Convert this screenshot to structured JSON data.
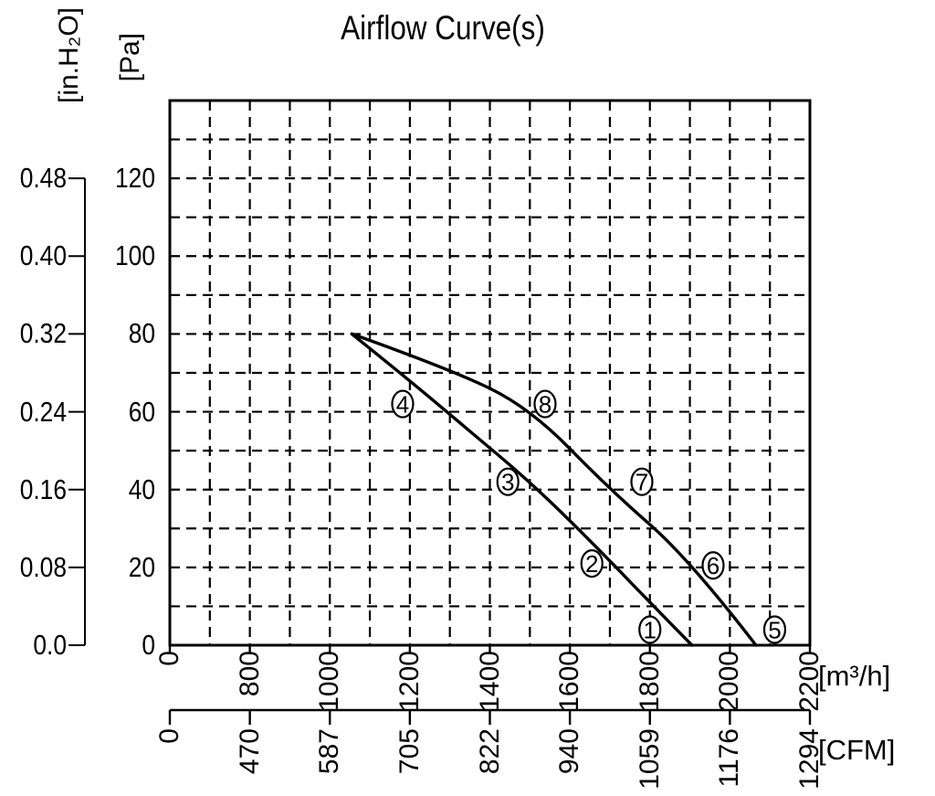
{
  "title": "Airflow Curve(s)",
  "colors": {
    "ink": "#000000",
    "background": "#ffffff"
  },
  "chart_data": {
    "type": "line",
    "title": "Airflow Curve(s)",
    "grid": {
      "style": "dashed",
      "x_step_m3h": 100,
      "y_step_pa": 10
    },
    "x_axes": [
      {
        "name": "airflow-m3h",
        "unit": "[m³/h]",
        "ticks": [
          0,
          800,
          1000,
          1200,
          1400,
          1600,
          1800,
          2000,
          2200
        ]
      },
      {
        "name": "airflow-cfm",
        "unit": "[CFM]",
        "ticks": [
          0,
          470,
          587,
          705,
          822,
          940,
          1059,
          1176,
          1294
        ]
      }
    ],
    "y_axes": [
      {
        "name": "static-pressure-inh2o",
        "unit": "[in.H₂O]",
        "ticks": [
          "0.48",
          "0.40",
          "0.32",
          "0.24",
          "0.16",
          "0.08",
          "0.0"
        ]
      },
      {
        "name": "static-pressure-pa",
        "unit": "[Pa]",
        "ticks": [
          120,
          100,
          80,
          60,
          40,
          20,
          0
        ]
      }
    ],
    "x_range_m3h": [
      0,
      2200
    ],
    "y_range_pa": [
      0,
      140
    ],
    "legend": "none",
    "series": [
      {
        "name": "curve-1-2-3-4",
        "labels": [
          "1",
          "2",
          "3",
          "4"
        ],
        "points_m3h_pa": [
          [
            1055,
            80
          ],
          [
            1200,
            68
          ],
          [
            1350,
            55
          ],
          [
            1500,
            42
          ],
          [
            1650,
            27
          ],
          [
            1800,
            11
          ],
          [
            1905,
            0
          ]
        ]
      },
      {
        "name": "curve-5-6-7-8",
        "labels": [
          "5",
          "6",
          "7",
          "8"
        ],
        "points_m3h_pa": [
          [
            1055,
            80
          ],
          [
            1300,
            71
          ],
          [
            1500,
            61
          ],
          [
            1700,
            40
          ],
          [
            1900,
            22
          ],
          [
            2065,
            0
          ]
        ]
      }
    ],
    "annotations": [
      {
        "label": "1",
        "x_m3h": 1800,
        "y_pa": 4
      },
      {
        "label": "2",
        "x_m3h": 1655,
        "y_pa": 21
      },
      {
        "label": "3",
        "x_m3h": 1445,
        "y_pa": 42
      },
      {
        "label": "4",
        "x_m3h": 1182,
        "y_pa": 62
      },
      {
        "label": "5",
        "x_m3h": 2112,
        "y_pa": 4
      },
      {
        "label": "6",
        "x_m3h": 1958,
        "y_pa": 20.5
      },
      {
        "label": "7",
        "x_m3h": 1780,
        "y_pa": 42
      },
      {
        "label": "8",
        "x_m3h": 1538,
        "y_pa": 62
      }
    ]
  }
}
